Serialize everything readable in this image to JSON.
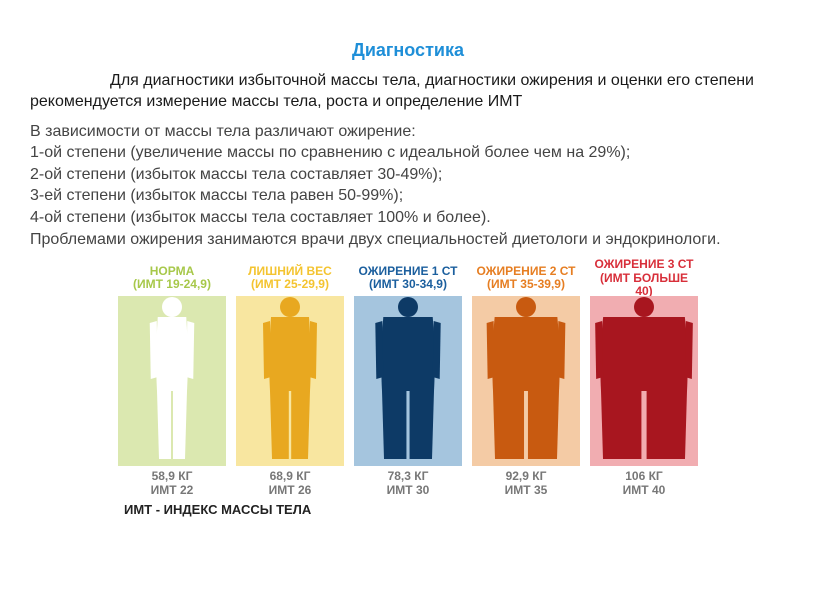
{
  "title": "Диагностика",
  "title_color": "#1f8fd8",
  "para1": "Для диагностики избыточной массы тела, диагностики ожирения и оценки его степени рекомендуется измерение массы тела, роста и определение ИМТ",
  "para2": "В зависимости от массы тела различают ожирение:\n1-ой степени (увеличение массы по сравнению с идеальной более чем на 29%);\n2-ой степени (избыток массы тела составляет 30-49%);\n3-ей степени (избыток массы тела равен 50-99%);\n4-ой степени (избыток массы тела составляет 100% и более).\nПроблемами ожирения занимаются врачи двух специальностей диетологи и эндокринологи.",
  "chart": {
    "type": "infographic",
    "caption": "ИМТ - ИНДЕКС МАССЫ ТЕЛА",
    "columns": [
      {
        "header_line1": "НОРМА",
        "header_line2": "(ИМТ 19-24,9)",
        "color": "#a7c84a",
        "panel_bg": "#dbe8b0",
        "silhouette_fill": "#ffffff",
        "body_width": 30,
        "footer_line1": "58,9 КГ",
        "footer_line2": "ИМТ 22"
      },
      {
        "header_line1": "ЛИШНИЙ ВЕС",
        "header_line2": "(ИМТ 25-29,9)",
        "color": "#f4c430",
        "panel_bg": "#f8e6a0",
        "silhouette_fill": "#e8a820",
        "body_width": 40,
        "footer_line1": "68,9 КГ",
        "footer_line2": "ИМТ 26"
      },
      {
        "header_line1": "ОЖИРЕНИЕ 1 СТ",
        "header_line2": "(ИМТ 30-34,9)",
        "color": "#1b5f9e",
        "panel_bg": "#a5c5de",
        "silhouette_fill": "#0d3a66",
        "body_width": 52,
        "footer_line1": "78,3 КГ",
        "footer_line2": "ИМТ 30"
      },
      {
        "header_line1": "ОЖИРЕНИЕ 2 СТ",
        "header_line2": "(ИМТ 35-39,9)",
        "color": "#e67e22",
        "panel_bg": "#f4cba5",
        "silhouette_fill": "#c85a10",
        "body_width": 66,
        "footer_line1": "92,9 КГ",
        "footer_line2": "ИМТ 35"
      },
      {
        "header_line1": "ОЖИРЕНИЕ 3 СТ",
        "header_line2": "(ИМТ БОЛЬШЕ 40)",
        "color": "#d82f3a",
        "panel_bg": "#f1adb1",
        "silhouette_fill": "#a8161f",
        "body_width": 86,
        "footer_line1": "106 КГ",
        "footer_line2": "ИМТ 40"
      }
    ]
  }
}
